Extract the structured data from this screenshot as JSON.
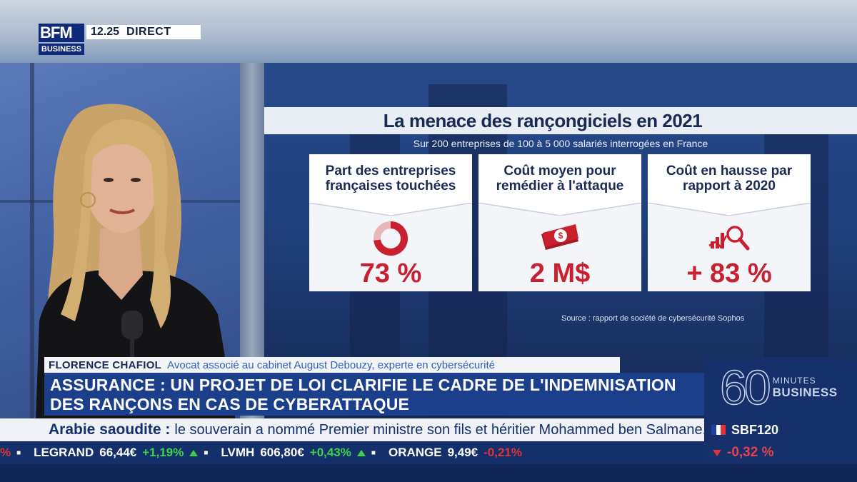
{
  "channel": {
    "logo_top": "BFM",
    "logo_bottom": "BUSINESS",
    "time": "12.25",
    "live": "DIRECT"
  },
  "infographic": {
    "title": "La menace des rançongiciels en 2021",
    "subtitle": "Sur 200 entreprises de 100 à 5 000 salariés interrogées en France",
    "cards": [
      {
        "header": "Part des entreprises françaises touchées",
        "value": "73 %",
        "icon": "donut-chart-icon",
        "fraction": 0.73
      },
      {
        "header": "Coût moyen pour remédier à l'attaque",
        "value": "2 M$",
        "icon": "dollar-bill-icon"
      },
      {
        "header": "Coût en hausse par rapport à 2020",
        "value": "+ 83 %",
        "icon": "chart-magnifier-icon"
      }
    ],
    "source": "Source : rapport de société de cybersécurité Sophos",
    "accent_color": "#c8202e"
  },
  "guest": {
    "name": "FLORENCE CHAFIOL",
    "role": "Avocat associé au cabinet August Debouzy, experte en cybersécurité"
  },
  "headline": "ASSURANCE : UN PROJET DE LOI CLARIFIE LE CADRE DE L'INDEMNISATION DES RANÇONS EN CAS DE CYBERATTAQUE",
  "show": {
    "number": "60",
    "word1": "MINUTES",
    "word2": "BUSINESS"
  },
  "news_ticker": {
    "topic": "Arabie saoudite :",
    "body": "le souverain a nommé Premier ministre son fils et héritier Mohammed ben Salmane."
  },
  "index": {
    "name": "SBF120",
    "change": "-0,32 %",
    "direction": "down"
  },
  "stocks": [
    {
      "name": "",
      "price": "",
      "change": "%",
      "direction": "down"
    },
    {
      "name": "LEGRAND",
      "price": "66,44€",
      "change": "+1,19%",
      "direction": "up"
    },
    {
      "name": "LVMH",
      "price": "606,80€",
      "change": "+0,43%",
      "direction": "up"
    },
    {
      "name": "ORANGE",
      "price": "9,49€",
      "change": "-0,21%",
      "direction": "down"
    }
  ]
}
